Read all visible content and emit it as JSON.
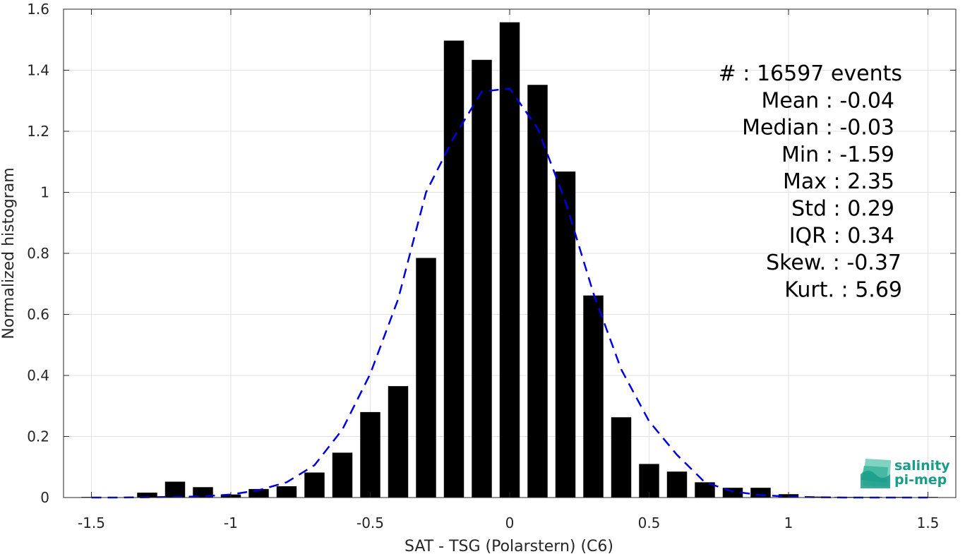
{
  "chart_data": {
    "type": "bar",
    "xlabel": "SAT - TSG (Polarstern) (C6)",
    "ylabel": "Normalized histogram",
    "xlim": [
      -1.6,
      1.6
    ],
    "ylim": [
      0,
      1.6
    ],
    "xticks": [
      -1.5,
      -1,
      -0.5,
      0,
      0.5,
      1,
      1.5
    ],
    "xtick_labels": [
      "-1.5",
      "-1",
      "-0.5",
      "0",
      "0.5",
      "1",
      "1.5"
    ],
    "yticks": [
      0,
      0.2,
      0.4,
      0.6,
      0.8,
      1,
      1.2,
      1.4,
      1.6
    ],
    "ytick_labels": [
      "0",
      "0.2",
      "0.4",
      "0.6",
      "0.8",
      "1",
      "1.2",
      "1.4",
      "1.6"
    ],
    "grid": true,
    "bar_color": "#000000",
    "bars": [
      {
        "x": -1.5,
        "y": 0.002
      },
      {
        "x": -1.4,
        "y": 0.001
      },
      {
        "x": -1.3,
        "y": 0.016
      },
      {
        "x": -1.2,
        "y": 0.052
      },
      {
        "x": -1.1,
        "y": 0.034
      },
      {
        "x": -1.0,
        "y": 0.01
      },
      {
        "x": -0.9,
        "y": 0.028
      },
      {
        "x": -0.8,
        "y": 0.037
      },
      {
        "x": -0.7,
        "y": 0.082
      },
      {
        "x": -0.6,
        "y": 0.147
      },
      {
        "x": -0.5,
        "y": 0.28
      },
      {
        "x": -0.4,
        "y": 0.365
      },
      {
        "x": -0.3,
        "y": 0.785
      },
      {
        "x": -0.2,
        "y": 1.497
      },
      {
        "x": -0.1,
        "y": 1.434
      },
      {
        "x": 0.0,
        "y": 1.557
      },
      {
        "x": 0.1,
        "y": 1.352
      },
      {
        "x": 0.2,
        "y": 1.068
      },
      {
        "x": 0.3,
        "y": 0.662
      },
      {
        "x": 0.4,
        "y": 0.263
      },
      {
        "x": 0.5,
        "y": 0.11
      },
      {
        "x": 0.6,
        "y": 0.085
      },
      {
        "x": 0.7,
        "y": 0.05
      },
      {
        "x": 0.8,
        "y": 0.032
      },
      {
        "x": 0.9,
        "y": 0.032
      },
      {
        "x": 1.0,
        "y": 0.011
      },
      {
        "x": 1.1,
        "y": 0.003
      },
      {
        "x": 1.2,
        "y": 0.002
      },
      {
        "x": 1.3,
        "y": 0.002
      },
      {
        "x": 1.4,
        "y": 0.002
      },
      {
        "x": 1.5,
        "y": 0.002
      }
    ],
    "fit_curve": {
      "style": "dashed",
      "color": "#0000dd",
      "x": [
        -1.5,
        -1.4,
        -1.3,
        -1.2,
        -1.1,
        -1.0,
        -0.9,
        -0.8,
        -0.7,
        -0.6,
        -0.5,
        -0.4,
        -0.3,
        -0.2,
        -0.1,
        0.0,
        0.1,
        0.2,
        0.3,
        0.4,
        0.5,
        0.6,
        0.7,
        0.8,
        0.9,
        1.0,
        1.1,
        1.2,
        1.3,
        1.4,
        1.5
      ],
      "y": [
        0.0,
        0.0,
        0.001,
        0.002,
        0.004,
        0.01,
        0.024,
        0.05,
        0.106,
        0.223,
        0.405,
        0.65,
        1.0,
        1.18,
        1.33,
        1.34,
        1.21,
        0.97,
        0.67,
        0.42,
        0.25,
        0.14,
        0.05,
        0.02,
        0.008,
        0.003,
        0.001,
        0.0,
        0.0,
        0.0,
        0.0
      ]
    },
    "stats": [
      {
        "label": "#  : 16597 events"
      },
      {
        "label": "Mean : -0.04"
      },
      {
        "label": "Median : -0.03"
      },
      {
        "label": "Min : -1.59"
      },
      {
        "label": "Max : 2.35"
      },
      {
        "label": "Std : 0.29"
      },
      {
        "label": "IQR : 0.34"
      },
      {
        "label": "Skew. : -0.37"
      },
      {
        "label": "Kurt. : 5.69"
      }
    ]
  },
  "logo": {
    "line1": "salinity",
    "line2": "pi-mep"
  }
}
